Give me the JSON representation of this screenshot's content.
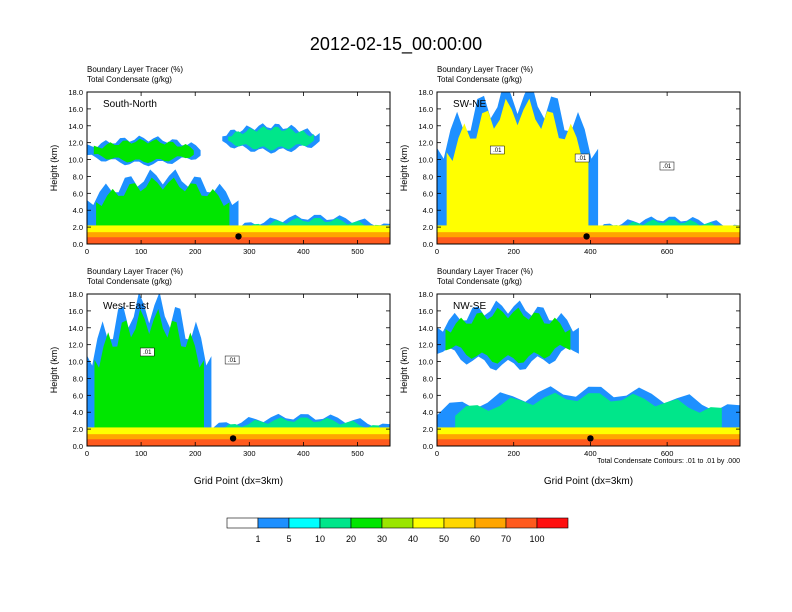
{
  "title": "2012-02-15_00:00:00",
  "footnote": "Total Condensate Contours: .01 to .01 by .000",
  "panel_top_labels": [
    "Boundary Layer Tracer   (%)",
    "Total Condensate   (g/kg)"
  ],
  "colorbar": {
    "labels": [
      "1",
      "5",
      "10",
      "20",
      "30",
      "40",
      "50",
      "60",
      "70",
      "100"
    ],
    "colors": [
      "#ffffff",
      "#1e90ff",
      "#00ffff",
      "#00e68a",
      "#00e600",
      "#9ae600",
      "#ffff00",
      "#ffd700",
      "#ffa500",
      "#ff5a1e",
      "#ff1010"
    ]
  },
  "chart_data": [
    {
      "type": "heatmap",
      "section": "South-North",
      "title": "Boundary Layer Tracer (%) / Total Condensate (g/kg)",
      "ylabel": "Height (km)",
      "xlabel": "",
      "xlim": [
        0,
        560
      ],
      "ylim": [
        0,
        18
      ],
      "xticks": [
        0,
        100,
        200,
        300,
        400,
        500
      ],
      "yticks": [
        "0.0",
        "2.0",
        "4.0",
        "6.0",
        "8.0",
        "10.0",
        "12.0",
        "14.0",
        "16.0",
        "18.0"
      ],
      "marker_x": 280,
      "cloud_layers": [
        {
          "x0": 0,
          "x1": 280,
          "top_km": 8.0,
          "value_pct": 25
        },
        {
          "x0": 280,
          "x1": 560,
          "top_km": 3.2,
          "value_pct": 15
        },
        {
          "x0": 0,
          "x1": 210,
          "top_km": 12.5,
          "base_km": 9.5,
          "value_pct": 20
        },
        {
          "x0": 250,
          "x1": 430,
          "top_km": 14.0,
          "base_km": 11.0,
          "value_pct": 15
        }
      ]
    },
    {
      "type": "heatmap",
      "section": "SW-NE",
      "title": "Boundary Layer Tracer (%) / Total Condensate (g/kg)",
      "ylabel": "Height (km)",
      "xlabel": "",
      "xlim": [
        0,
        790
      ],
      "ylim": [
        0,
        18
      ],
      "xticks": [
        0,
        200,
        400,
        600
      ],
      "yticks": [
        "0.0",
        "2.0",
        "4.0",
        "6.0",
        "8.0",
        "10.0",
        "12.0",
        "14.0",
        "16.0",
        "18.0"
      ],
      "marker_x": 390,
      "contour_labels": [
        ".01",
        ".01",
        ".01"
      ],
      "cloud_layers": [
        {
          "x0": 0,
          "x1": 420,
          "top_km": 17.5,
          "value_pct": 40
        },
        {
          "x0": 420,
          "x1": 790,
          "top_km": 3.0,
          "value_pct": 15
        }
      ]
    },
    {
      "type": "heatmap",
      "section": "West-East",
      "title": "Boundary Layer Tracer (%) / Total Condensate (g/kg)",
      "ylabel": "Height (km)",
      "xlabel": "Grid Point (dx=3km)",
      "xlim": [
        0,
        560
      ],
      "ylim": [
        0,
        18
      ],
      "xticks": [
        0,
        100,
        200,
        300,
        400,
        500
      ],
      "yticks": [
        "0.0",
        "2.0",
        "4.0",
        "6.0",
        "8.0",
        "10.0",
        "12.0",
        "14.0",
        "16.0",
        "18.0"
      ],
      "marker_x": 270,
      "contour_labels": [
        ".01",
        ".01"
      ],
      "cloud_layers": [
        {
          "x0": 0,
          "x1": 230,
          "top_km": 16.5,
          "value_pct": 25
        },
        {
          "x0": 230,
          "x1": 560,
          "top_km": 3.5,
          "value_pct": 15
        }
      ]
    },
    {
      "type": "heatmap",
      "section": "NW-SE",
      "title": "Boundary Layer Tracer (%) / Total Condensate (g/kg)",
      "ylabel": "Height (km)",
      "xlabel": "Grid Point (dx=3km)",
      "xlim": [
        0,
        790
      ],
      "ylim": [
        0,
        18
      ],
      "xticks": [
        0,
        200,
        400,
        600
      ],
      "yticks": [
        "0.0",
        "2.0",
        "4.0",
        "6.0",
        "8.0",
        "10.0",
        "12.0",
        "14.0",
        "16.0",
        "18.0"
      ],
      "marker_x": 400,
      "cloud_layers": [
        {
          "x0": 0,
          "x1": 370,
          "top_km": 16.5,
          "base_km": 9.5,
          "value_pct": 20
        },
        {
          "x0": 0,
          "x1": 790,
          "top_km": 6.5,
          "value_pct": 15
        }
      ]
    }
  ]
}
